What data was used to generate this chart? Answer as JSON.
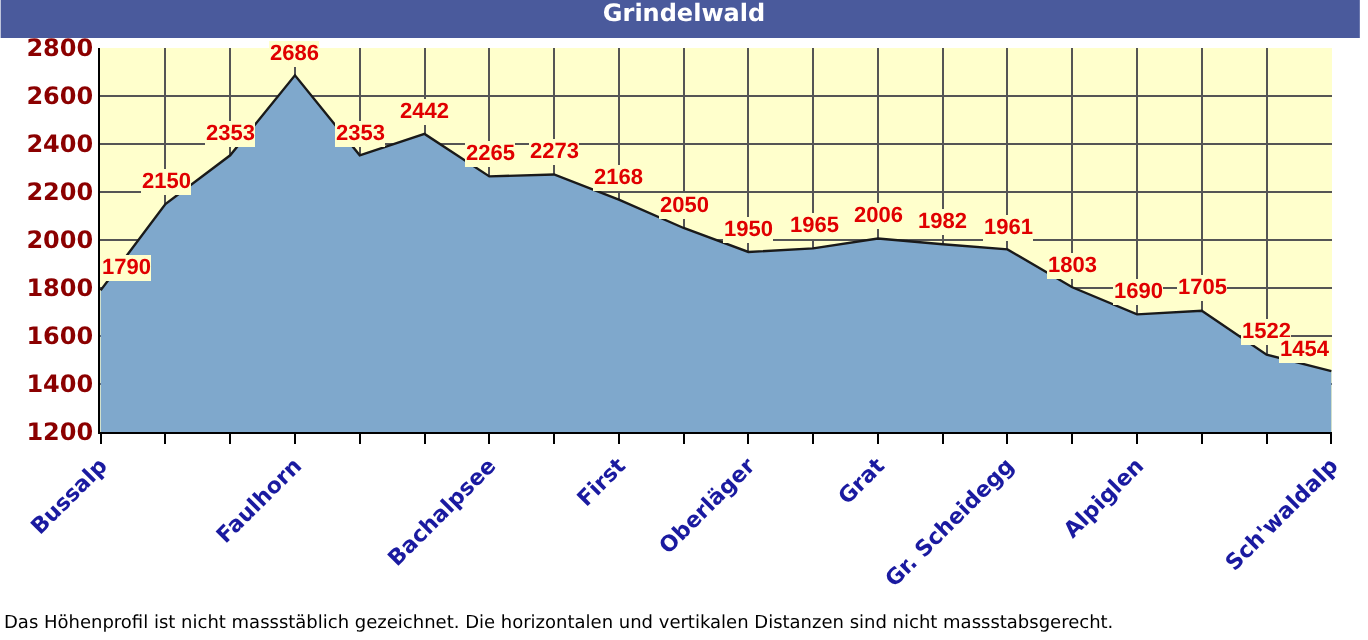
{
  "chart_data": {
    "type": "area",
    "title": "Grindelwald",
    "categories": [
      "Bussalp",
      null,
      null,
      "Faulhorn",
      null,
      null,
      "Bachalpsee",
      null,
      "First",
      null,
      "Oberläger",
      null,
      "Grat",
      null,
      "Gr. Scheidegg",
      null,
      "Alpiglen",
      null,
      null,
      "Sch'waldalp"
    ],
    "series": [
      {
        "color": "#7fa8cc",
        "values": [
          1790,
          2150,
          2353,
          2686,
          2353,
          2442,
          2265,
          2273,
          2168,
          2050,
          1950,
          1965,
          2006,
          1982,
          1961,
          1803,
          1690,
          1705,
          1522,
          1454
        ]
      }
    ],
    "ylim": [
      1200,
      2800
    ],
    "yticks": [
      1200,
      1400,
      1600,
      1800,
      2000,
      2200,
      2400,
      2600,
      2800
    ],
    "grid": true,
    "data_labels": true,
    "annotations": [
      "Das Höhenprofil ist nicht massstäblich gezeichnet. Die horizontalen und vertikalen Distanzen sind nicht massstabsgerecht."
    ]
  }
}
